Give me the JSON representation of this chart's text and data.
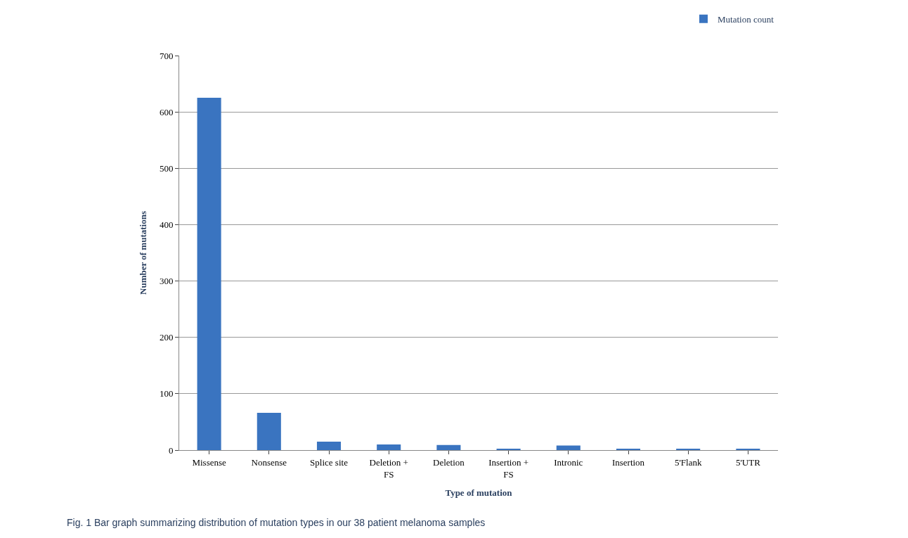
{
  "chart_data": {
    "type": "bar",
    "xlabel": "Type of mutation",
    "ylabel": "Number of mutations",
    "categories": [
      "Missense",
      "Nonsense",
      "Splice site",
      "Deletion + FS",
      "Deletion",
      "Insertion + FS",
      "Intronic",
      "Insertion",
      "5'Flank",
      "5'UTR"
    ],
    "series": [
      {
        "name": "Mutation count",
        "color": "#3a74c0",
        "values": [
          625,
          66,
          15,
          10,
          9,
          2,
          8,
          2,
          2,
          2
        ]
      }
    ],
    "ylim": [
      0,
      700
    ],
    "yticks": [
      0,
      100,
      200,
      300,
      400,
      500,
      600,
      700
    ],
    "grid": "y",
    "legend": "top right",
    "annotations": [
      "Fig. 1 Bar graph summarizing distribution of mutation types in our 38 patient melanoma samples"
    ]
  }
}
